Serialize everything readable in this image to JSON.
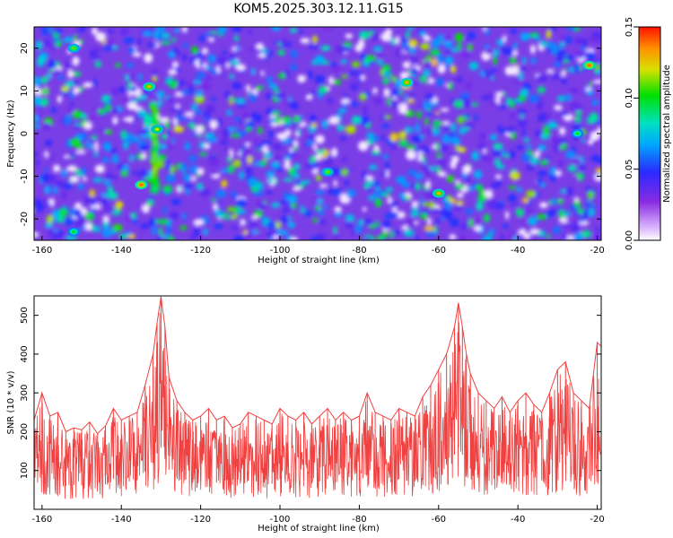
{
  "title": "KOM5.2025.303.12.11.G15",
  "chart_data": [
    {
      "type": "heatmap",
      "xlabel": "Height of straight line (km)",
      "ylabel": "Frequency (Hz)",
      "xlim": [
        -162,
        -19
      ],
      "ylim": [
        -25,
        25
      ],
      "xticks": [
        -160,
        -140,
        -120,
        -100,
        -80,
        -60,
        -40,
        -20
      ],
      "yticks": [
        -20,
        -10,
        0,
        10,
        20
      ],
      "colorbar": {
        "label": "Normalized spectral amplitude",
        "range": [
          0,
          0.15
        ],
        "ticks": [
          "0.00",
          "0.05",
          "0.10",
          "0.15"
        ]
      },
      "hotspots": [
        {
          "x": -135,
          "y": -12,
          "value": 0.14
        },
        {
          "x": -133,
          "y": 11,
          "value": 0.13
        },
        {
          "x": -131,
          "y": 1,
          "value": 0.12
        },
        {
          "x": -68,
          "y": 12,
          "value": 0.13
        },
        {
          "x": -60,
          "y": -14,
          "value": 0.13
        },
        {
          "x": -22,
          "y": 16,
          "value": 0.14
        },
        {
          "x": -152,
          "y": 20,
          "value": 0.11
        },
        {
          "x": -88,
          "y": -9,
          "value": 0.11
        },
        {
          "x": -25,
          "y": 0,
          "value": 0.1
        },
        {
          "x": -152,
          "y": -23,
          "value": 0.1
        }
      ]
    },
    {
      "type": "line",
      "xlabel": "Height of straight line (km)",
      "ylabel": "SNR (10 * v/v)",
      "xlim": [
        -162,
        -19
      ],
      "ylim": [
        0,
        550
      ],
      "xticks": [
        -160,
        -140,
        -120,
        -100,
        -80,
        -60,
        -40,
        -20
      ],
      "yticks": [
        100,
        200,
        300,
        400,
        500
      ],
      "series": [
        {
          "name": "SNR",
          "color": "#f04040",
          "x": [
            -162,
            -160,
            -158,
            -156,
            -154,
            -152,
            -150,
            -148,
            -146,
            -144,
            -142,
            -140,
            -138,
            -136,
            -134,
            -132,
            -131,
            -130,
            -129,
            -128,
            -126,
            -124,
            -122,
            -120,
            -118,
            -116,
            -114,
            -112,
            -110,
            -108,
            -106,
            -104,
            -102,
            -100,
            -98,
            -96,
            -94,
            -92,
            -90,
            -88,
            -86,
            -84,
            -82,
            -80,
            -78,
            -76,
            -74,
            -72,
            -70,
            -68,
            -66,
            -64,
            -62,
            -60,
            -58,
            -56,
            -55,
            -54,
            -53,
            -52,
            -50,
            -48,
            -46,
            -44,
            -42,
            -40,
            -38,
            -36,
            -34,
            -32,
            -30,
            -28,
            -26,
            -24,
            -22,
            -20,
            -19
          ],
          "y": [
            230,
            300,
            240,
            250,
            200,
            210,
            205,
            225,
            195,
            215,
            260,
            230,
            240,
            250,
            320,
            400,
            480,
            548,
            470,
            340,
            280,
            250,
            230,
            240,
            260,
            230,
            240,
            210,
            220,
            250,
            240,
            230,
            220,
            260,
            240,
            230,
            250,
            220,
            240,
            260,
            230,
            250,
            230,
            240,
            300,
            250,
            240,
            230,
            260,
            250,
            240,
            290,
            320,
            360,
            400,
            470,
            532,
            470,
            400,
            350,
            300,
            280,
            260,
            290,
            250,
            280,
            300,
            270,
            250,
            300,
            360,
            380,
            300,
            280,
            260,
            430,
            420
          ]
        }
      ]
    }
  ]
}
